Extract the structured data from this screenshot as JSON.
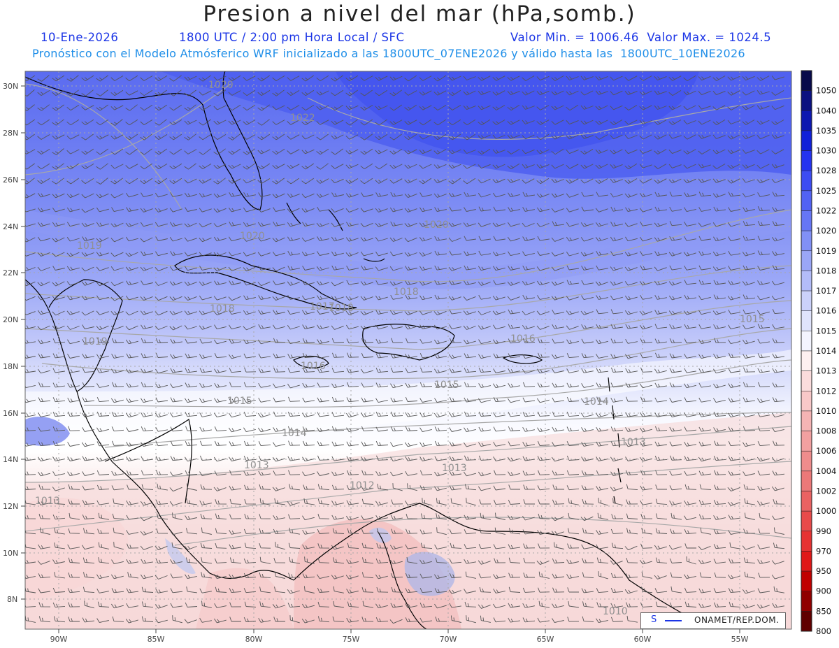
{
  "header": {
    "title": "Presion a nivel del mar (hPa,somb.)",
    "date": "10-Ene-2026",
    "time": "1800 UTC / 2:00 pm Hora Local / SFC",
    "minmax": "Valor Min. = 1006.46  Valor Max. = 1024.5",
    "model_info": "Pronóstico con el Modelo Atmósferico WRF inicializado a las 1800UTC_07ENE2026 y válido hasta las  1800UTC_10ENE2026"
  },
  "axes": {
    "lat_labels": [
      "30N",
      "28N",
      "26N",
      "24N",
      "22N",
      "20N",
      "18N",
      "16N",
      "14N",
      "12N",
      "10N",
      "8N"
    ],
    "lon_labels": [
      "90W",
      "85W",
      "80W",
      "75W",
      "70W",
      "65W",
      "60W",
      "55W"
    ]
  },
  "isobar_labels": [
    "1020",
    "1022",
    "1020",
    "1020",
    "1018",
    "1018",
    "1017",
    "1018",
    "1016",
    "1015",
    "1016",
    "1015",
    "1015",
    "1014",
    "1014",
    "1013",
    "1013",
    "1013",
    "1012",
    "1013",
    "1010",
    "1019",
    "1019"
  ],
  "legend": {
    "values": [
      "1050",
      "1040",
      "1035",
      "1030",
      "1028",
      "1025",
      "1022",
      "1020",
      "1019",
      "1018",
      "1017",
      "1016",
      "1015",
      "1014",
      "1013",
      "1012",
      "1010",
      "1008",
      "1006",
      "1004",
      "1002",
      "1000",
      "990",
      "970",
      "950",
      "900",
      "850",
      "800"
    ],
    "colors": [
      "#070a4a",
      "#0b1180",
      "#0d18b0",
      "#1020d8",
      "#2433f0",
      "#3c4cf2",
      "#5262f3",
      "#6676f5",
      "#8190f6",
      "#9aa6f7",
      "#b3bcf9",
      "#cbd1fa",
      "#e0e4fc",
      "#f3f4fe",
      "#fdf0f0",
      "#fbdcdc",
      "#f8c8c8",
      "#f5b4b4",
      "#f2a0a0",
      "#ef8c8c",
      "#ec7878",
      "#ea6262",
      "#e84a4a",
      "#e63232",
      "#e01818",
      "#c00000",
      "#900000",
      "#600000"
    ]
  },
  "colors": {
    "land": "#000000",
    "grid": "#a8a8a8",
    "barb": "#555555",
    "isobar": "#a8a8a8"
  },
  "credit": {
    "symbol": "S",
    "label": "ONAMET/REP.DOM."
  }
}
